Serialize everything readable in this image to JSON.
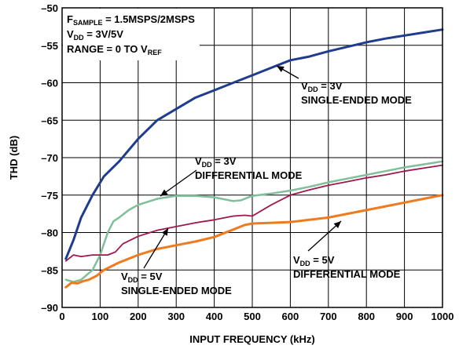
{
  "chart_data": {
    "type": "line",
    "title": "",
    "xlabel": "INPUT FREQUENCY (kHz)",
    "ylabel": "THD (dB)",
    "xlim": [
      0,
      1000
    ],
    "ylim": [
      -90,
      -50
    ],
    "x_ticks": [
      0,
      100,
      200,
      300,
      400,
      500,
      600,
      700,
      800,
      900,
      1000
    ],
    "y_ticks": [
      -50,
      -55,
      -60,
      -65,
      -70,
      -75,
      -80,
      -85,
      -90
    ],
    "grid": true,
    "conditions": [
      {
        "main": "F",
        "sub": "SAMPLE",
        "rest": " = 1.5MSPS/2MSPS"
      },
      {
        "main": "V",
        "sub": "DD",
        "rest": " = 3V/5V"
      },
      {
        "main": "RANGE = 0 TO V",
        "sub": "REF",
        "rest": ""
      }
    ],
    "series": [
      {
        "label_main": "V",
        "label_sub": "DD",
        "label_rest": " = 3V",
        "label_line2": "SINGLE-ENDED MODE",
        "color": "#1f3d8c",
        "stroke_width": 3,
        "x": [
          10,
          30,
          50,
          80,
          110,
          150,
          200,
          250,
          300,
          350,
          400,
          450,
          500,
          550,
          600,
          650,
          700,
          750,
          800,
          850,
          900,
          950,
          1000
        ],
        "y": [
          -83.5,
          -81,
          -78,
          -75,
          -72.5,
          -70.5,
          -67.5,
          -65,
          -63.5,
          -62,
          -61,
          -60,
          -59,
          -58,
          -57,
          -56.5,
          -55.8,
          -55.2,
          -54.6,
          -54.1,
          -53.7,
          -53.3,
          -52.9
        ]
      },
      {
        "label_main": "V",
        "label_sub": "DD",
        "label_rest": " = 3V",
        "label_line2": "DIFFERENTIAL MODE",
        "color": "#7fbf9a",
        "stroke_width": 2.5,
        "x": [
          10,
          30,
          50,
          80,
          100,
          120,
          135,
          150,
          175,
          200,
          250,
          300,
          350,
          400,
          450,
          470,
          500,
          550,
          600,
          650,
          700,
          750,
          800,
          850,
          900,
          950,
          1000
        ],
        "y": [
          -86.3,
          -86.6,
          -86.3,
          -85,
          -83,
          -80,
          -78.5,
          -78,
          -77,
          -76.3,
          -75.5,
          -75.1,
          -75.1,
          -75.3,
          -75.8,
          -75.7,
          -75.1,
          -74.8,
          -74.4,
          -73.9,
          -73.3,
          -72.8,
          -72.3,
          -71.8,
          -71.3,
          -70.9,
          -70.5
        ]
      },
      {
        "label_main": "V",
        "label_sub": "DD",
        "label_rest": " = 5V",
        "label_line2": "SINGLE-ENDED MODE",
        "color": "#a0174e",
        "stroke_width": 1.8,
        "x": [
          10,
          30,
          50,
          80,
          100,
          120,
          140,
          160,
          200,
          250,
          300,
          350,
          400,
          450,
          480,
          500,
          550,
          600,
          650,
          700,
          750,
          800,
          850,
          900,
          950,
          1000
        ],
        "y": [
          -83.8,
          -83,
          -83.2,
          -83,
          -83,
          -83,
          -82.6,
          -81.5,
          -80.5,
          -79.7,
          -79.2,
          -78.7,
          -78.3,
          -77.8,
          -77.7,
          -77.8,
          -76.3,
          -75,
          -74.3,
          -73.7,
          -73.2,
          -72.7,
          -72.3,
          -71.8,
          -71.4,
          -71
        ]
      },
      {
        "label_main": "V",
        "label_sub": "DD",
        "label_rest": " = 5V",
        "label_line2": "DIFFERENTIAL MODE",
        "color": "#f07a1e",
        "stroke_width": 3,
        "x": [
          10,
          25,
          40,
          55,
          70,
          90,
          110,
          130,
          150,
          200,
          250,
          300,
          350,
          400,
          450,
          480,
          500,
          550,
          600,
          650,
          700,
          750,
          800,
          850,
          900,
          950,
          1000
        ],
        "y": [
          -87.3,
          -86.7,
          -86.8,
          -86.5,
          -86.3,
          -85.8,
          -85,
          -84.5,
          -84,
          -83,
          -82.2,
          -81.7,
          -81.2,
          -80.6,
          -79.6,
          -79,
          -78.8,
          -78.7,
          -78.6,
          -78.3,
          -78,
          -77.5,
          -77,
          -76.5,
          -76,
          -75.5,
          -75
        ]
      }
    ]
  }
}
